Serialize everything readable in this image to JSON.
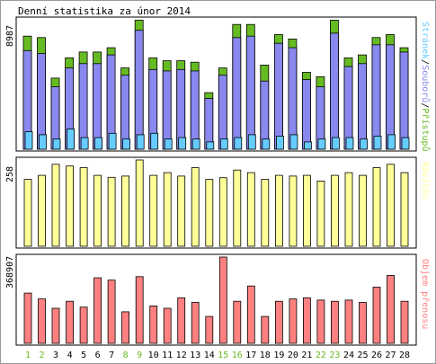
{
  "chart_data": [
    {
      "type": "bar",
      "title": "Denní statistika za únor 2014",
      "categories": [
        "1",
        "2",
        "3",
        "4",
        "5",
        "6",
        "7",
        "8",
        "9",
        "10",
        "11",
        "12",
        "13",
        "14",
        "15",
        "16",
        "17",
        "18",
        "19",
        "20",
        "21",
        "22",
        "23",
        "24",
        "25",
        "26",
        "27",
        "28"
      ],
      "weekend_days": [
        "1",
        "2",
        "8",
        "9",
        "15",
        "16",
        "22",
        "23"
      ],
      "ylabel": "Stránek / Souborů / Přístupů",
      "y_tick_label": "8987",
      "ylim": [
        0,
        8987
      ],
      "series": [
        {
          "name": "Přístupů",
          "color": "#66bb22",
          "values": [
            7800,
            7700,
            4900,
            6300,
            6700,
            6700,
            7000,
            5600,
            8900,
            6300,
            6100,
            6100,
            6000,
            3900,
            5600,
            8600,
            8600,
            5800,
            7900,
            7600,
            5300,
            5000,
            8900,
            6300,
            6500,
            7700,
            7900,
            7000
          ]
        },
        {
          "name": "Souborů",
          "color": "#8888ee",
          "values": [
            6800,
            6600,
            4300,
            5600,
            5900,
            5900,
            6500,
            5100,
            8200,
            5500,
            5400,
            5500,
            5400,
            3500,
            5100,
            7700,
            7800,
            4700,
            7300,
            7000,
            4800,
            4300,
            8000,
            5700,
            5900,
            7200,
            7200,
            6700
          ]
        },
        {
          "name": "Stránek",
          "color": "#66ccff",
          "values": [
            1200,
            1000,
            700,
            1400,
            800,
            800,
            1100,
            700,
            1000,
            1100,
            700,
            800,
            700,
            500,
            700,
            800,
            1000,
            700,
            900,
            1000,
            500,
            700,
            800,
            800,
            700,
            900,
            1000,
            800
          ]
        }
      ]
    },
    {
      "type": "bar",
      "categories": [
        "1",
        "2",
        "3",
        "4",
        "5",
        "6",
        "7",
        "8",
        "9",
        "10",
        "11",
        "12",
        "13",
        "14",
        "15",
        "16",
        "17",
        "18",
        "19",
        "20",
        "21",
        "22",
        "23",
        "24",
        "25",
        "26",
        "27",
        "28"
      ],
      "ylabel": "Návštěv",
      "y_tick_label": "258",
      "ylim": [
        0,
        258
      ],
      "series": [
        {
          "name": "Návštěv",
          "color": "#ffff99",
          "values": [
            200,
            212,
            245,
            240,
            235,
            212,
            206,
            210,
            258,
            212,
            220,
            210,
            235,
            200,
            205,
            228,
            220,
            200,
            212,
            210,
            212,
            195,
            212,
            220,
            212,
            235,
            245,
            220
          ]
        }
      ]
    },
    {
      "type": "bar",
      "categories": [
        "1",
        "2",
        "3",
        "4",
        "5",
        "6",
        "7",
        "8",
        "9",
        "10",
        "11",
        "12",
        "13",
        "14",
        "15",
        "16",
        "17",
        "18",
        "19",
        "20",
        "21",
        "22",
        "23",
        "24",
        "25",
        "26",
        "27",
        "28"
      ],
      "ylabel": "Objem přenosu",
      "y_tick_label": "368907",
      "ylim": [
        0,
        368907
      ],
      "series": [
        {
          "name": "Objem přenosu",
          "color": "#ff8080",
          "values": [
            215000,
            190000,
            150000,
            180000,
            155000,
            280000,
            270000,
            135000,
            285000,
            160000,
            150000,
            195000,
            175000,
            115000,
            368907,
            180000,
            245000,
            115000,
            180000,
            190000,
            195000,
            185000,
            180000,
            185000,
            175000,
            240000,
            290000,
            180000
          ]
        }
      ]
    }
  ]
}
